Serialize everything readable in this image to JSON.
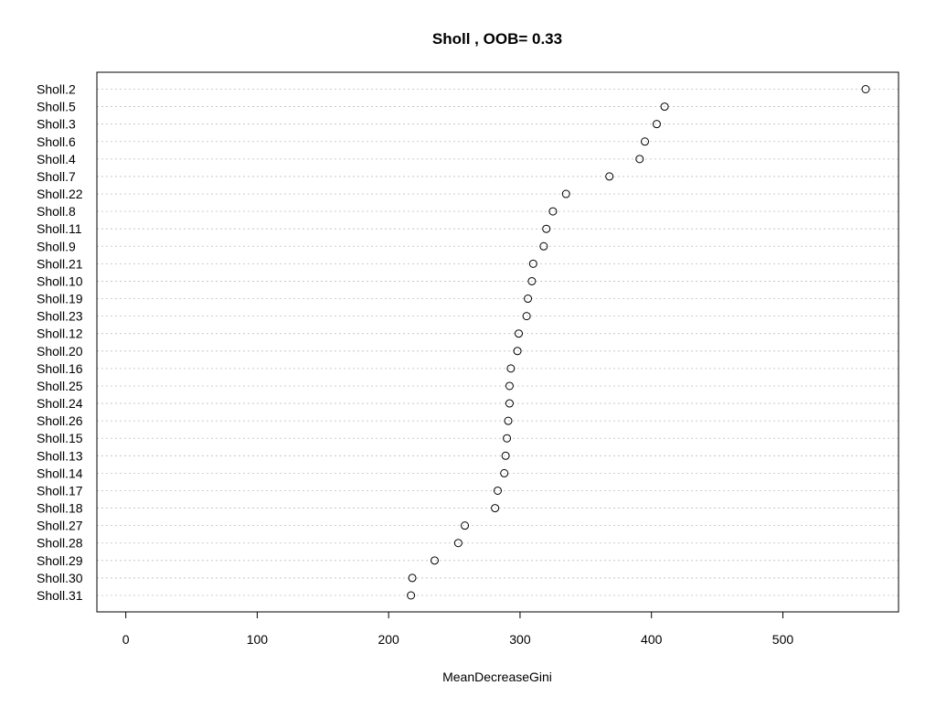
{
  "chart_data": {
    "type": "scatter",
    "title": "Sholl , OOB= 0.33",
    "xlabel": "MeanDecreaseGini",
    "ylabel": "",
    "xlim": [
      -22,
      588
    ],
    "xticks": [
      0,
      100,
      200,
      300,
      400,
      500
    ],
    "grid": true,
    "categories": [
      "Sholl.2",
      "Sholl.5",
      "Sholl.3",
      "Sholl.6",
      "Sholl.4",
      "Sholl.7",
      "Sholl.22",
      "Sholl.8",
      "Sholl.11",
      "Sholl.9",
      "Sholl.21",
      "Sholl.10",
      "Sholl.19",
      "Sholl.23",
      "Sholl.12",
      "Sholl.20",
      "Sholl.16",
      "Sholl.25",
      "Sholl.24",
      "Sholl.26",
      "Sholl.15",
      "Sholl.13",
      "Sholl.14",
      "Sholl.17",
      "Sholl.18",
      "Sholl.27",
      "Sholl.28",
      "Sholl.29",
      "Sholl.30",
      "Sholl.31"
    ],
    "values": [
      563,
      410,
      404,
      395,
      391,
      368,
      335,
      325,
      320,
      318,
      310,
      309,
      306,
      305,
      299,
      298,
      293,
      292,
      292,
      291,
      290,
      289,
      288,
      283,
      281,
      258,
      253,
      235,
      218,
      217
    ]
  }
}
